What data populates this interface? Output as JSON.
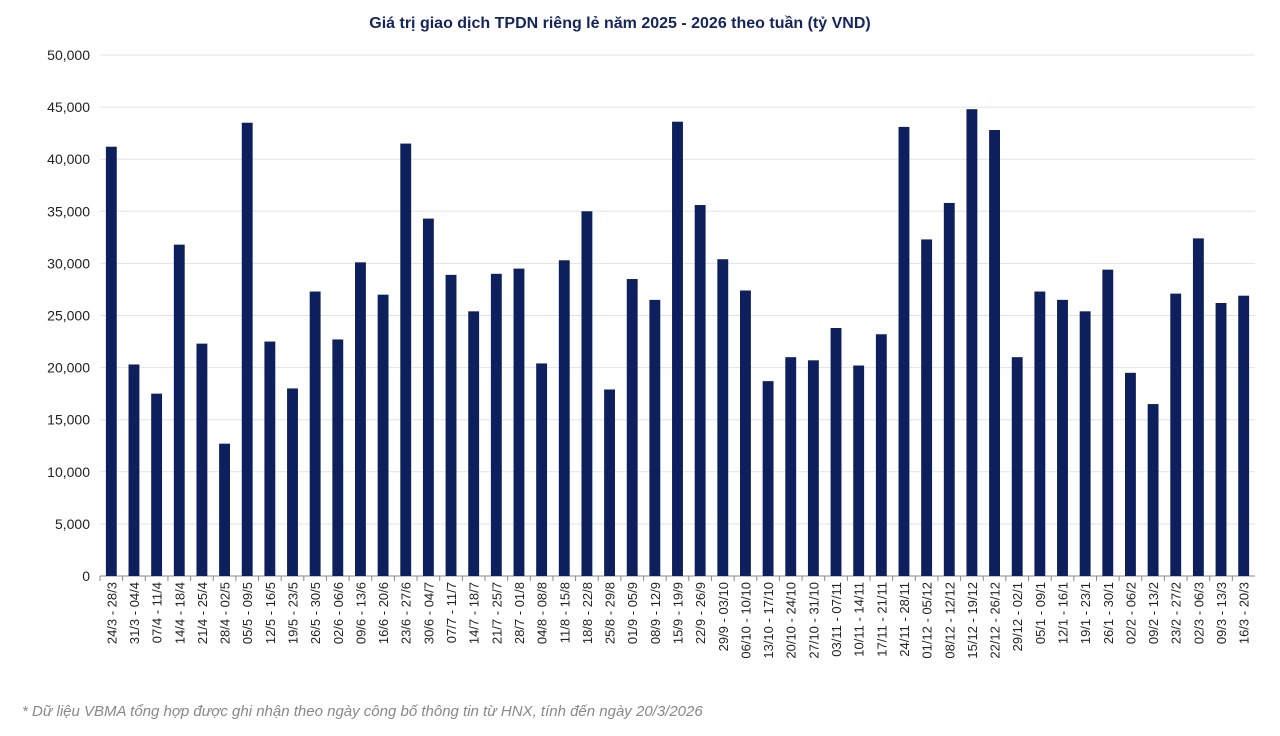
{
  "chart_data": {
    "type": "bar",
    "title": "Giá trị giao dịch TPDN riêng lẻ năm 2025 - 2026 theo tuần (tỷ VND)",
    "footnote": "* Dữ liệu VBMA tổng hợp được ghi nhận theo ngày công bố thông tin từ HNX, tính đến ngày 20/3/2026",
    "categories": [
      "24/3 - 28/3",
      "31/3 - 04/4",
      "07/4 - 11/4",
      "14/4 - 18/4",
      "21/4 - 25/4",
      "28/4 - 02/5",
      "05/5 - 09/5",
      "12/5 - 16/5",
      "19/5 - 23/5",
      "26/5 - 30/5",
      "02/6 - 06/6",
      "09/6 - 13/6",
      "16/6 - 20/6",
      "23/6 - 27/6",
      "30/6 - 04/7",
      "07/7 - 11/7",
      "14/7 - 18/7",
      "21/7 - 25/7",
      "28/7 - 01/8",
      "04/8 - 08/8",
      "11/8 - 15/8",
      "18/8 - 22/8",
      "25/8 - 29/8",
      "01/9 - 05/9",
      "08/9 - 12/9",
      "15/9 - 19/9",
      "22/9 - 26/9",
      "29/9 - 03/10",
      "06/10 - 10/10",
      "13/10 - 17/10",
      "20/10 - 24/10",
      "27/10 - 31/10",
      "03/11 - 07/11",
      "10/11 - 14/11",
      "17/11 - 21/11",
      "24/11 - 28/11",
      "01/12 - 05/12",
      "08/12 - 12/12",
      "15/12 - 19/12",
      "22/12 - 26/12",
      "29/12 - 02/1",
      "05/1 - 09/1",
      "12/1 - 16/1",
      "19/1 - 23/1",
      "26/1 - 30/1",
      "02/2 - 06/2",
      "09/2 - 13/2",
      "23/2 - 27/2",
      "02/3 - 06/3",
      "09/3 - 13/3",
      "16/3 - 20/3"
    ],
    "values": [
      41200,
      20300,
      17500,
      31800,
      22300,
      12700,
      43500,
      22500,
      18000,
      27300,
      22700,
      30100,
      27000,
      41500,
      34300,
      28900,
      25400,
      29000,
      29500,
      20400,
      30300,
      35000,
      17900,
      28500,
      26500,
      43600,
      35600,
      30400,
      27400,
      18700,
      21000,
      20700,
      23800,
      20200,
      23200,
      43100,
      32300,
      35800,
      44800,
      42800,
      21000,
      27300,
      26500,
      25400,
      29400,
      19500,
      16500,
      27100,
      32400,
      26200,
      26900
    ],
    "color": "#0d1f5c",
    "ylim": [
      0,
      50000
    ],
    "yticks": [
      0,
      {
        "value": 5000,
        "label": "5,000"
      },
      {
        "value": 10000,
        "label": "10,000"
      },
      {
        "value": 15000,
        "label": "15,000"
      },
      {
        "value": 20000,
        "label": "20,000"
      },
      {
        "value": 25000,
        "label": "25,000"
      },
      {
        "value": 30000,
        "label": "30,000"
      },
      {
        "value": 35000,
        "label": "35,000"
      },
      {
        "value": 40000,
        "label": "40,000"
      },
      {
        "value": 45000,
        "label": "45,000"
      },
      {
        "value": 50000,
        "label": "50,000"
      }
    ],
    "grid": true
  }
}
